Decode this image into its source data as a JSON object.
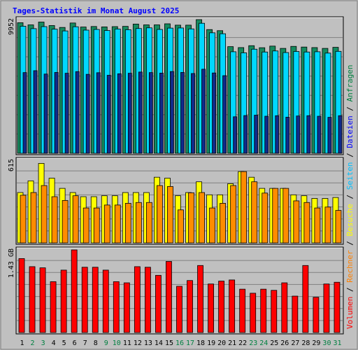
{
  "chart_data": [
    {
      "type": "bar",
      "title": "Tages-Statistik im Monat August 2025",
      "ytick": "9952",
      "ylim": [
        0,
        9952
      ],
      "categories": [
        "1",
        "2",
        "3",
        "4",
        "5",
        "6",
        "7",
        "8",
        "9",
        "10",
        "11",
        "12",
        "13",
        "14",
        "15",
        "16",
        "17",
        "18",
        "19",
        "20",
        "21",
        "22",
        "23",
        "24",
        "25",
        "26",
        "27",
        "28",
        "29",
        "30",
        "31"
      ],
      "series": [
        {
          "name": "Anfragen",
          "values": [
            9720,
            9560,
            9770,
            9510,
            9370,
            9700,
            9400,
            9440,
            9410,
            9430,
            9450,
            9620,
            9560,
            9560,
            9640,
            9540,
            9540,
            9950,
            9210,
            9130,
            7940,
            7870,
            8010,
            7860,
            7980,
            7810,
            7960,
            7910,
            7870,
            7810,
            7890
          ]
        },
        {
          "name": "Seiten",
          "values": [
            9460,
            9280,
            9430,
            9240,
            9110,
            9420,
            9170,
            9220,
            9140,
            9250,
            9200,
            9290,
            9340,
            9220,
            9320,
            9330,
            9260,
            9680,
            8970,
            8900,
            7560,
            7480,
            7750,
            7540,
            7620,
            7500,
            7580,
            7540,
            7560,
            7460,
            7590
          ]
        },
        {
          "name": "Dateien",
          "values": [
            6010,
            6150,
            5900,
            6020,
            5960,
            6080,
            5880,
            6000,
            5810,
            5920,
            5960,
            6050,
            6010,
            5970,
            6090,
            6020,
            5940,
            6260,
            5980,
            5780,
            2720,
            2810,
            2840,
            2760,
            2800,
            2690,
            2780,
            2800,
            2760,
            2680,
            2800
          ]
        }
      ]
    },
    {
      "type": "bar",
      "ytick": "615",
      "ylim": [
        0,
        615
      ],
      "categories": [
        "1",
        "2",
        "3",
        "4",
        "5",
        "6",
        "7",
        "8",
        "9",
        "10",
        "11",
        "12",
        "13",
        "14",
        "15",
        "16",
        "17",
        "18",
        "19",
        "20",
        "21",
        "22",
        "23",
        "24",
        "25",
        "26",
        "27",
        "28",
        "29",
        "30",
        "31"
      ],
      "series": [
        {
          "name": "Besuche",
          "values": [
            375,
            462,
            592,
            482,
            406,
            375,
            344,
            344,
            351,
            351,
            375,
            375,
            375,
            489,
            482,
            351,
            375,
            455,
            358,
            358,
            441,
            531,
            489,
            406,
            406,
            406,
            358,
            351,
            331,
            331,
            338
          ]
        },
        {
          "name": "Rechner",
          "values": [
            355,
            375,
            427,
            344,
            316,
            351,
            260,
            260,
            282,
            282,
            295,
            301,
            301,
            427,
            420,
            246,
            373,
            375,
            260,
            295,
            427,
            531,
            455,
            371,
            406,
            406,
            313,
            301,
            260,
            267,
            242
          ]
        }
      ]
    },
    {
      "type": "bar",
      "ytick": "1.43 GB",
      "ylim": [
        0,
        1.43
      ],
      "unit": "GB",
      "categories": [
        "1",
        "2",
        "3",
        "4",
        "5",
        "6",
        "7",
        "8",
        "9",
        "10",
        "11",
        "12",
        "13",
        "14",
        "15",
        "16",
        "17",
        "18",
        "19",
        "20",
        "21",
        "22",
        "23",
        "24",
        "25",
        "26",
        "27",
        "28",
        "29",
        "30",
        "31"
      ],
      "series": [
        {
          "name": "Volumen",
          "values": [
            1.28,
            1.14,
            1.12,
            0.88,
            1.08,
            1.43,
            1.13,
            1.13,
            1.08,
            0.88,
            0.86,
            1.14,
            1.13,
            0.99,
            1.23,
            0.8,
            0.9,
            1.16,
            0.84,
            0.89,
            0.91,
            0.75,
            0.68,
            0.75,
            0.73,
            0.86,
            0.63,
            1.16,
            0.61,
            0.84,
            0.87
          ]
        }
      ]
    }
  ],
  "legend": {
    "top": [
      {
        "label": "Anfragen",
        "color": "#008040"
      },
      {
        "label": "Dateien",
        "color": "#0000ff"
      },
      {
        "label": "Seiten",
        "color": "#00c0ff"
      },
      {
        "label": "Besuche",
        "color": "#ffff00"
      },
      {
        "label": "Rechner",
        "color": "#ff8000"
      },
      {
        "label": "Volumen",
        "color": "#ff0000"
      }
    ],
    "separator": "/"
  },
  "colors": {
    "title": "#0000ff",
    "anfragen": "#158a5e",
    "seiten": "#00d8ff",
    "dateien": "#102a8a",
    "besuche": "#ffff00",
    "rechner": "#ff8c00",
    "volumen": "#ff0000",
    "weekend_label": "#008040",
    "day_label": "#000000"
  },
  "weekend_days": [
    "2",
    "3",
    "9",
    "10",
    "16",
    "17",
    "23",
    "24",
    "30",
    "31"
  ]
}
